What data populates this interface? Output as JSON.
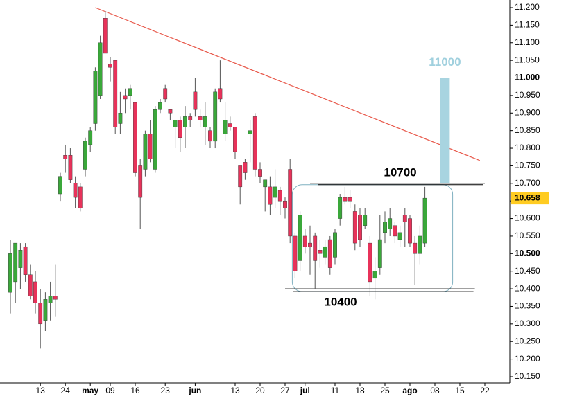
{
  "chart_data": {
    "type": "candlestick",
    "categories": [
      null,
      null,
      null,
      null,
      null,
      null,
      "13",
      null,
      null,
      null,
      null,
      "24",
      null,
      null,
      null,
      null,
      "may",
      null,
      null,
      null,
      "09",
      null,
      null,
      null,
      null,
      "16",
      null,
      null,
      null,
      null,
      null,
      "23",
      null,
      null,
      null,
      null,
      null,
      "jun",
      null,
      null,
      null,
      null,
      null,
      null,
      null,
      "13",
      null,
      null,
      null,
      null,
      "20",
      null,
      null,
      null,
      null,
      "27",
      null,
      null,
      null,
      "jul",
      null,
      null,
      null,
      null,
      null,
      "11",
      null,
      null,
      null,
      null,
      "18",
      null,
      null,
      null,
      null,
      "25",
      null,
      null,
      null,
      null,
      "ago",
      null,
      null,
      null,
      null,
      "08",
      null,
      null,
      null,
      null,
      "15",
      null,
      null,
      null,
      null,
      "22"
    ],
    "open": [
      10.39,
      10.42,
      10.46,
      10.52,
      10.44,
      10.42,
      10.36,
      10.31,
      10.36,
      10.38,
      10.67,
      10.78,
      10.78,
      10.7,
      10.69,
      10.74,
      10.81,
      10.87,
      10.95,
      11.17,
      11.04,
      11.05,
      10.87,
      10.95,
      10.95,
      10.93,
      10.75,
      10.74,
      10.84,
      10.74,
      10.91,
      10.97,
      10.91,
      10.86,
      10.88,
      10.86,
      10.89,
      10.96,
      10.89,
      10.86,
      10.85,
      10.82,
      10.97,
      10.84,
      10.87,
      10.86,
      10.75,
      10.76,
      10.84,
      10.89,
      10.74,
      10.69,
      10.69,
      10.66,
      10.68,
      10.65,
      10.74,
      10.55,
      10.48,
      10.55,
      10.53,
      10.55,
      10.51,
      10.49,
      10.54,
      10.49,
      10.6,
      10.66,
      10.66,
      10.62,
      10.61,
      10.58,
      10.53,
      10.43,
      10.46,
      10.56,
      10.57,
      10.58,
      10.54,
      10.61,
      10.6,
      10.53,
      10.5,
      10.53,
      null,
      null,
      null,
      null,
      null,
      null,
      null,
      null,
      null,
      null,
      null,
      null
    ],
    "high": [
      10.54,
      10.53,
      10.53,
      10.53,
      10.47,
      10.45,
      10.4,
      10.39,
      10.42,
      10.47,
      10.73,
      10.81,
      10.8,
      10.72,
      10.7,
      10.83,
      10.86,
      11.03,
      11.12,
      11.19,
      11.06,
      11.05,
      10.96,
      10.97,
      10.98,
      10.93,
      10.77,
      10.85,
      10.88,
      10.92,
      10.94,
      10.98,
      10.91,
      10.88,
      10.89,
      10.92,
      10.9,
      11.0,
      10.91,
      10.93,
      10.86,
      10.97,
      11.05,
      10.93,
      10.89,
      10.86,
      10.75,
      10.77,
      10.88,
      10.9,
      10.76,
      10.71,
      10.72,
      10.74,
      10.69,
      10.66,
      10.77,
      10.56,
      10.62,
      10.57,
      10.58,
      10.56,
      10.54,
      10.54,
      10.55,
      10.57,
      10.67,
      10.69,
      10.68,
      10.64,
      10.63,
      10.63,
      10.55,
      10.49,
      10.61,
      10.62,
      10.63,
      10.59,
      10.58,
      10.63,
      10.61,
      10.55,
      10.58,
      10.69,
      null,
      null,
      null,
      null,
      null,
      null,
      null,
      null,
      null,
      null,
      null,
      null
    ],
    "low": [
      10.33,
      10.36,
      10.4,
      10.42,
      10.37,
      10.33,
      10.23,
      10.28,
      10.31,
      10.32,
      10.65,
      10.73,
      10.7,
      10.63,
      10.62,
      10.72,
      10.79,
      10.85,
      10.94,
      11.07,
      10.99,
      10.84,
      10.84,
      10.9,
      10.91,
      10.72,
      10.57,
      10.72,
      10.76,
      10.73,
      10.9,
      10.93,
      10.88,
      10.8,
      10.79,
      10.8,
      10.86,
      10.89,
      10.86,
      10.81,
      10.8,
      10.8,
      10.93,
      10.82,
      10.85,
      10.77,
      10.64,
      10.71,
      10.76,
      10.72,
      10.7,
      10.62,
      10.61,
      10.63,
      10.61,
      10.6,
      10.53,
      10.43,
      10.45,
      10.5,
      10.44,
      10.4,
      10.46,
      10.47,
      10.44,
      10.47,
      10.58,
      10.64,
      10.63,
      10.51,
      10.52,
      10.57,
      10.38,
      10.37,
      10.44,
      10.53,
      10.55,
      10.53,
      10.52,
      10.52,
      10.52,
      10.41,
      10.47,
      10.52,
      null,
      null,
      null,
      null,
      null,
      null,
      null,
      null,
      null,
      null,
      null,
      null
    ],
    "close": [
      10.5,
      10.53,
      10.51,
      10.44,
      10.38,
      10.36,
      10.3,
      10.37,
      10.38,
      10.37,
      10.72,
      10.77,
      10.71,
      10.66,
      10.63,
      10.82,
      10.85,
      11.02,
      11.1,
      11.07,
      11.03,
      10.86,
      10.9,
      10.94,
      10.97,
      10.73,
      10.66,
      10.84,
      10.77,
      10.91,
      10.93,
      10.94,
      10.9,
      10.88,
      10.83,
      10.89,
      10.88,
      10.91,
      10.88,
      10.89,
      10.82,
      10.96,
      10.94,
      10.88,
      10.86,
      10.79,
      10.69,
      10.73,
      10.85,
      10.74,
      10.72,
      10.71,
      10.64,
      10.69,
      10.65,
      10.63,
      10.55,
      10.45,
      10.61,
      10.52,
      10.52,
      10.48,
      10.5,
      10.52,
      10.46,
      10.56,
      10.66,
      10.65,
      10.65,
      10.53,
      10.54,
      10.61,
      10.42,
      10.45,
      10.54,
      10.59,
      10.6,
      10.55,
      10.56,
      10.59,
      10.53,
      10.5,
      10.55,
      10.658,
      null,
      null,
      null,
      null,
      null,
      null,
      null,
      null,
      null,
      null,
      null,
      null
    ],
    "up_color": "#3aa83a",
    "down_color": "#e8325a",
    "ylim": [
      10.13,
      11.22
    ],
    "yticks": [
      {
        "value": 10.15,
        "label": "10.150"
      },
      {
        "value": 10.2,
        "label": "10.200"
      },
      {
        "value": 10.25,
        "label": "10.250"
      },
      {
        "value": 10.3,
        "label": "10.300"
      },
      {
        "value": 10.35,
        "label": "10.350"
      },
      {
        "value": 10.4,
        "label": "10.400"
      },
      {
        "value": 10.45,
        "label": "10.450"
      },
      {
        "value": 10.5,
        "label": "10.500"
      },
      {
        "value": 10.55,
        "label": "10.550"
      },
      {
        "value": 10.6,
        "label": "10.600"
      },
      {
        "value": 10.65,
        "label": "10.650"
      },
      {
        "value": 10.7,
        "label": "10.700"
      },
      {
        "value": 10.75,
        "label": "10.750"
      },
      {
        "value": 10.8,
        "label": "10.800"
      },
      {
        "value": 10.85,
        "label": "10.850"
      },
      {
        "value": 10.9,
        "label": "10.900"
      },
      {
        "value": 10.95,
        "label": "10.950"
      },
      {
        "value": 11.0,
        "label": "11.000"
      },
      {
        "value": 11.05,
        "label": "11.050"
      },
      {
        "value": 11.1,
        "label": "11.100"
      },
      {
        "value": 11.15,
        "label": "11.150"
      },
      {
        "value": 11.2,
        "label": "11.200"
      }
    ],
    "last_price": 10.658,
    "last_price_color": "#ffcc22",
    "trendline": {
      "from": 17,
      "to": 94,
      "start": 11.2,
      "end": 10.765,
      "color": "#e8584a"
    },
    "levels": [
      {
        "label": "10700",
        "value": 10.7,
        "from": 60,
        "to": 95
      },
      {
        "label": "10400",
        "value": 10.4,
        "from": 55,
        "to": 93
      }
    ],
    "target": {
      "label": "11000",
      "from": 10.7,
      "to": 11.0,
      "index": 87,
      "color": "#a8d4e0"
    }
  }
}
